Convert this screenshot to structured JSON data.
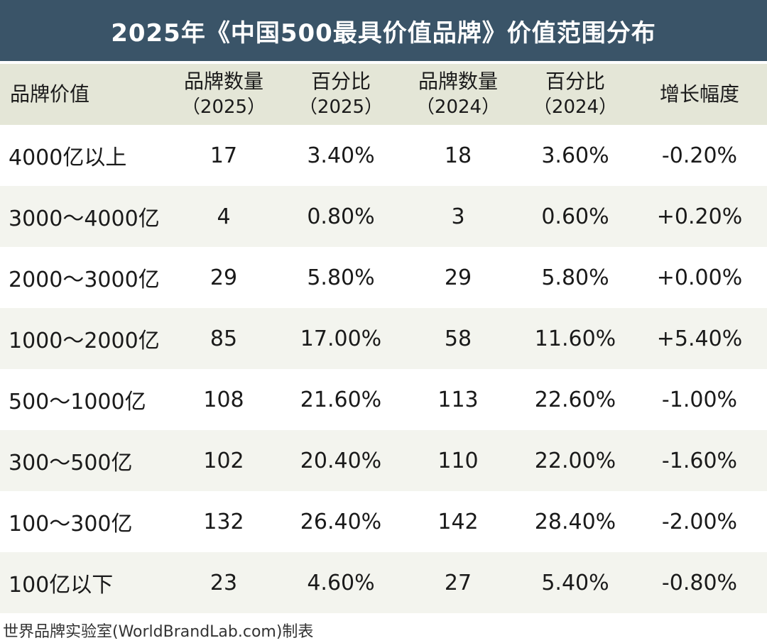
{
  "title": "2025年《中国500最具价值品牌》价值范围分布",
  "header": {
    "col1": "品牌价值",
    "col2_line1": "品牌数量",
    "col2_line2": "（2025）",
    "col3_line1": "百分比",
    "col3_line2": "（2025）",
    "col4_line1": "品牌数量",
    "col4_line2": "（2024）",
    "col5_line1": "百分比",
    "col5_line2": "（2024）",
    "col6": "增长幅度"
  },
  "rows": [
    {
      "range": "4000亿以上",
      "count2025": "17",
      "pct2025": "3.40%",
      "count2024": "18",
      "pct2024": "3.60%",
      "growth": "-0.20%"
    },
    {
      "range": "3000～4000亿",
      "count2025": "4",
      "pct2025": "0.80%",
      "count2024": "3",
      "pct2024": "0.60%",
      "growth": "+0.20%"
    },
    {
      "range": "2000～3000亿",
      "count2025": "29",
      "pct2025": "5.80%",
      "count2024": "29",
      "pct2024": "5.80%",
      "growth": "+0.00%"
    },
    {
      "range": "1000～2000亿",
      "count2025": "85",
      "pct2025": "17.00%",
      "count2024": "58",
      "pct2024": "11.60%",
      "growth": "+5.40%"
    },
    {
      "range": "500～1000亿",
      "count2025": "108",
      "pct2025": "21.60%",
      "count2024": "113",
      "pct2024": "22.60%",
      "growth": "-1.00%"
    },
    {
      "range": "300～500亿",
      "count2025": "102",
      "pct2025": "20.40%",
      "count2024": "110",
      "pct2024": "22.00%",
      "growth": "-1.60%"
    },
    {
      "range": "100～300亿",
      "count2025": "132",
      "pct2025": "26.40%",
      "count2024": "142",
      "pct2024": "28.40%",
      "growth": "-2.00%"
    },
    {
      "range": "100亿以下",
      "count2025": "23",
      "pct2025": "4.60%",
      "count2024": "27",
      "pct2024": "5.40%",
      "growth": "-0.80%"
    }
  ],
  "footer": "世界品牌实验室(WorldBrandLab.com)制表",
  "colors": {
    "title_bg": "#3a5468",
    "header_bg": "#e4e6d7",
    "stripe_bg": "#f3f4ee"
  }
}
